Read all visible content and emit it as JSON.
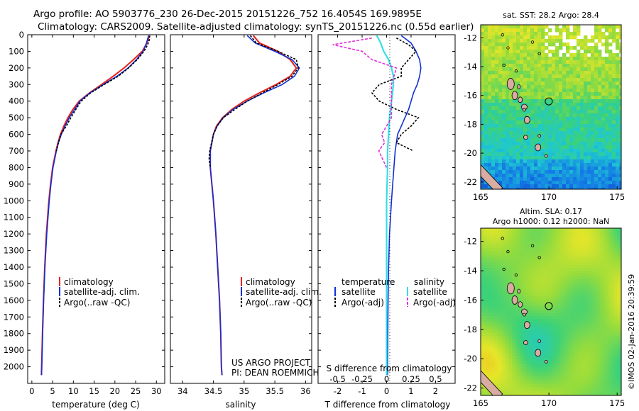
{
  "header": {
    "line1": "Argo profile: AO 5903776_230 26-Dec-2015 20151226_752 16.4054S 169.9895E",
    "line2": "Climatology: CARS2009. Satellite-adjusted climatology: synTS_20151226.nc (0.55d earlier)"
  },
  "colors": {
    "climatology": "#e8211a",
    "satellite": "#1030d8",
    "argo": "#000000",
    "sat_salinity": "#33e0e8",
    "argo_salinity": "#e030d8"
  },
  "depth_axis": {
    "range": [
      0,
      2100
    ],
    "ticks": [
      "0",
      "100",
      "200",
      "300",
      "400",
      "500",
      "600",
      "700",
      "800",
      "900",
      "1000",
      "1100",
      "1200",
      "1300",
      "1400",
      "1500",
      "1600",
      "1700",
      "1800",
      "1900",
      "2000"
    ]
  },
  "chart_data": [
    {
      "type": "line",
      "id": "temperature",
      "xlabel": "temperature (deg C)",
      "ylabel": "depth",
      "xlim": [
        -1,
        32
      ],
      "ylim": [
        2100,
        0
      ],
      "xticks": [
        "0",
        "5",
        "10",
        "15",
        "20",
        "25",
        "30"
      ],
      "legend": [
        "climatology",
        "satellite-adj. clim.",
        "Argo(..raw -QC)"
      ],
      "series": [
        {
          "name": "climatology",
          "depth": [
            5,
            50,
            100,
            150,
            200,
            250,
            300,
            350,
            400,
            450,
            500,
            550,
            600,
            650,
            700,
            800,
            900,
            1000,
            1200,
            1400,
            1600,
            1800,
            2000,
            2050
          ],
          "values": [
            28.3,
            27.7,
            26.6,
            24.5,
            22.2,
            19.6,
            16.8,
            13.9,
            11.4,
            9.9,
            8.7,
            7.7,
            6.9,
            6.3,
            5.8,
            5.0,
            4.5,
            4.1,
            3.5,
            3.1,
            2.8,
            2.55,
            2.35,
            2.3
          ]
        },
        {
          "name": "satellite-adj. clim.",
          "depth": [
            5,
            50,
            100,
            150,
            200,
            250,
            300,
            350,
            400,
            450,
            500,
            550,
            600,
            650,
            700,
            800,
            900,
            1000,
            1200,
            1400,
            1600,
            1800,
            2000,
            2050
          ],
          "values": [
            28.1,
            27.6,
            26.8,
            25.2,
            23.2,
            20.5,
            17.2,
            14.0,
            11.6,
            10.3,
            9.0,
            8.0,
            7.1,
            6.4,
            5.9,
            5.1,
            4.6,
            4.2,
            3.6,
            3.15,
            2.85,
            2.6,
            2.4,
            2.35
          ]
        },
        {
          "name": "Argo(..raw -QC)",
          "depth": [
            5,
            30,
            60,
            100,
            150,
            200,
            250,
            300,
            350,
            400,
            450,
            500,
            550,
            600,
            650,
            700
          ],
          "values": [
            28.4,
            28.3,
            27.9,
            27.0,
            25.4,
            23.3,
            20.8,
            17.4,
            14.2,
            11.9,
            10.6,
            9.4,
            8.3,
            7.0,
            6.4,
            5.9
          ]
        }
      ]
    },
    {
      "type": "line",
      "id": "salinity",
      "xlabel": "salinity",
      "ylabel": "depth",
      "xlim": [
        33.8,
        36.1
      ],
      "ylim": [
        2100,
        0
      ],
      "xticks": [
        "34",
        "34.5",
        "35",
        "35.5",
        "36"
      ],
      "legend": [
        "climatology",
        "satellite-adj. clim.",
        "Argo(..raw -QC)"
      ],
      "annotation": [
        "US ARGO PROJECT",
        "PI: DEAN ROEMMICH"
      ],
      "series": [
        {
          "name": "climatology",
          "depth": [
            5,
            50,
            100,
            150,
            200,
            250,
            300,
            350,
            400,
            450,
            500,
            550,
            600,
            700,
            800,
            1000,
            1200,
            1400,
            1600,
            1800,
            2000,
            2050
          ],
          "values": [
            35.15,
            35.25,
            35.55,
            35.75,
            35.85,
            35.75,
            35.52,
            35.25,
            35.0,
            34.8,
            34.65,
            34.55,
            34.5,
            34.45,
            34.45,
            34.5,
            34.54,
            34.57,
            34.6,
            34.62,
            34.63,
            34.64
          ]
        },
        {
          "name": "satellite-adj. clim.",
          "depth": [
            5,
            50,
            100,
            150,
            200,
            250,
            300,
            350,
            400,
            450,
            500,
            550,
            600,
            700,
            800,
            1000,
            1200,
            1400,
            1600,
            1800,
            2000,
            2050
          ],
          "values": [
            35.05,
            35.18,
            35.5,
            35.78,
            35.9,
            35.82,
            35.62,
            35.32,
            35.05,
            34.82,
            34.66,
            34.56,
            34.5,
            34.45,
            34.45,
            34.5,
            34.54,
            34.57,
            34.6,
            34.62,
            34.63,
            34.64
          ]
        },
        {
          "name": "Argo(..raw -QC)",
          "depth": [
            5,
            50,
            100,
            150,
            200,
            250,
            300,
            350,
            400,
            450,
            500,
            550,
            600,
            700,
            750,
            800
          ],
          "values": [
            35.1,
            35.2,
            35.55,
            35.85,
            35.88,
            35.78,
            35.55,
            35.3,
            35.05,
            34.85,
            34.66,
            34.56,
            34.5,
            34.44,
            34.43,
            34.45
          ]
        }
      ]
    },
    {
      "type": "line",
      "id": "difference",
      "xlabel": "T difference from climatology",
      "xlabel_top": "S difference from climatology",
      "ylabel": "depth",
      "xlim": [
        -2.8,
        2.8
      ],
      "ylim": [
        2100,
        0
      ],
      "xticks": [
        "-2",
        "-1",
        "0",
        "1",
        "2"
      ],
      "s_ticks": [
        "-0.5",
        "-0.25",
        "0",
        "0.25",
        "0.5"
      ],
      "legend_temperature_title": "temperature",
      "legend_salinity_title": "salinity",
      "legend": [
        "satellite",
        "Argo(-adj)",
        "satellite",
        "Argo(-adj)"
      ],
      "series": [
        {
          "name": "temperature satellite",
          "depth": [
            5,
            50,
            100,
            150,
            200,
            250,
            300,
            350,
            400,
            450,
            500,
            550,
            600,
            700,
            800,
            900,
            1000,
            1200,
            1400,
            1600,
            1800,
            2000,
            2050
          ],
          "values": [
            0.6,
            1.0,
            1.2,
            1.35,
            1.4,
            1.35,
            1.25,
            1.1,
            1.0,
            0.9,
            0.75,
            0.6,
            0.45,
            0.35,
            0.3,
            0.25,
            0.2,
            0.12,
            0.08,
            0.06,
            0.05,
            0.04,
            0.04
          ]
        },
        {
          "name": "temperature Argo(-adj)",
          "depth": [
            20,
            60,
            100,
            150,
            200,
            250,
            300,
            350,
            400,
            450,
            500,
            550,
            600,
            650,
            700
          ],
          "values": [
            0.4,
            0.9,
            1.2,
            0.9,
            0.6,
            0.6,
            -0.3,
            -0.6,
            -0.3,
            0.4,
            1.3,
            1.0,
            0.6,
            0.4,
            1.1
          ]
        },
        {
          "name": "salinity satellite",
          "depth": [
            5,
            50,
            100,
            150,
            200,
            250,
            300,
            350,
            400,
            500,
            600,
            700,
            800,
            1000,
            1200,
            1600,
            2000,
            2050
          ],
          "values": [
            -0.1,
            -0.06,
            -0.03,
            0.02,
            0.05,
            0.07,
            0.07,
            0.06,
            0.05,
            0.03,
            0.02,
            0.01,
            0.01,
            0.0,
            0.0,
            0.0,
            0.0,
            0.0
          ]
        },
        {
          "name": "salinity Argo(-adj)",
          "depth": [
            20,
            60,
            100,
            150,
            200,
            300,
            400,
            500,
            600,
            650,
            700,
            750,
            800
          ],
          "values": [
            -0.15,
            -0.55,
            -0.25,
            -0.15,
            0.1,
            0.05,
            0.05,
            0.05,
            -0.05,
            -0.02,
            -0.08,
            -0.04,
            0.0
          ]
        }
      ]
    },
    {
      "type": "heatmap",
      "id": "sst_map",
      "title": "sat. SST: 28.2 Argo: 28.4",
      "xticks": [
        "165",
        "170",
        "175"
      ],
      "yticks": [
        "-12",
        "-14",
        "-16",
        "-18",
        "-20",
        "-22"
      ],
      "xlim": [
        165,
        175.3
      ],
      "ylim": [
        -22.5,
        -11.1
      ],
      "argo_position": [
        169.99,
        -16.41
      ]
    },
    {
      "type": "heatmap",
      "id": "sla_map",
      "title_line1": "Altim. SLA: 0.17",
      "title_line2": "Argo h1000: 0.12 h2000: NaN",
      "xticks": [
        "165",
        "170",
        "175"
      ],
      "yticks": [
        "-12",
        "-14",
        "-16",
        "-18",
        "-20",
        "-22"
      ],
      "xlim": [
        165,
        175.3
      ],
      "ylim": [
        -22.5,
        -11.1
      ],
      "argo_position": [
        169.99,
        -16.41
      ]
    }
  ],
  "stamp": "©IMOS 02-Jan-2016 20:39:59"
}
